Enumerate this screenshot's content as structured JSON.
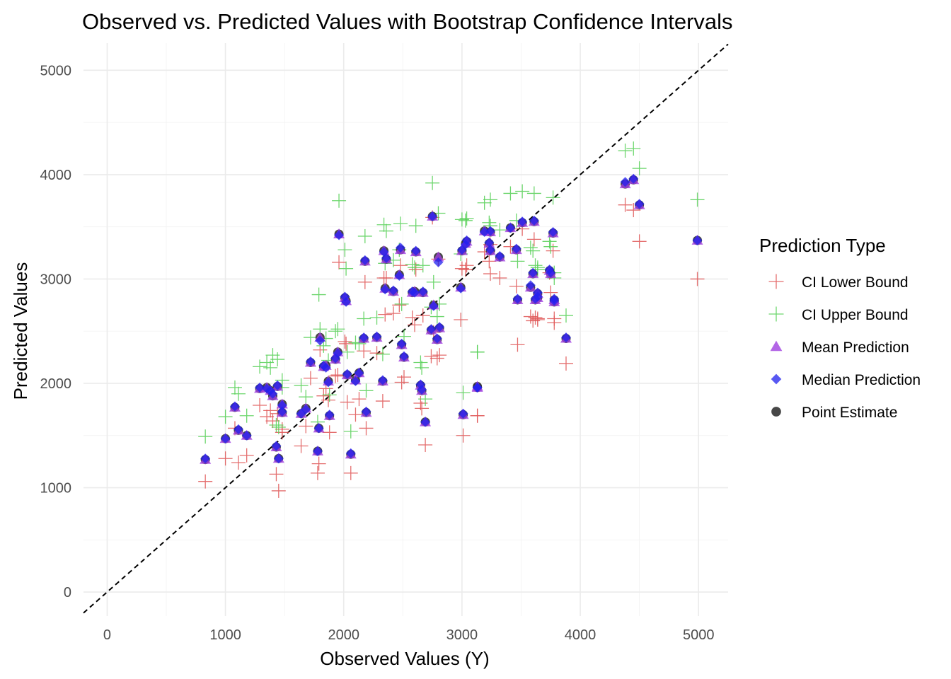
{
  "chart_data": {
    "type": "scatter",
    "title": "Observed vs. Predicted Values with Bootstrap Confidence Intervals",
    "xlabel": "Observed Values (Y)",
    "ylabel": "Predicted Values",
    "xlim": [
      -200,
      5250
    ],
    "ylim": [
      -230,
      5260
    ],
    "x_ticks": [
      0,
      1000,
      2000,
      3000,
      4000,
      5000
    ],
    "y_ticks": [
      0,
      1000,
      2000,
      3000,
      4000,
      5000
    ],
    "grid": true,
    "reference_line": {
      "type": "identity",
      "style": "dashed",
      "color": "#000000"
    },
    "legend": {
      "title": "Prediction Type",
      "position": "right",
      "entries": [
        {
          "label": "CI Lower Bound",
          "shape": "plus",
          "color": "#e05555"
        },
        {
          "label": "CI Upper Bound",
          "shape": "plus",
          "color": "#55d055"
        },
        {
          "label": "Mean Prediction",
          "shape": "triangle",
          "color": "#a040e0"
        },
        {
          "label": "Median Prediction",
          "shape": "diamond",
          "color": "#2020ee"
        },
        {
          "label": "Point Estimate",
          "shape": "circle",
          "color": "#333333"
        }
      ]
    },
    "x": [
      830,
      1000,
      1080,
      1110,
      1180,
      1290,
      1350,
      1380,
      1400,
      1430,
      1440,
      1450,
      1480,
      1480,
      1640,
      1680,
      1720,
      1780,
      1790,
      1800,
      1830,
      1850,
      1870,
      1880,
      1930,
      1950,
      1960,
      2010,
      2020,
      2030,
      2060,
      2100,
      2130,
      2170,
      2180,
      2190,
      2280,
      2330,
      2340,
      2350,
      2360,
      2420,
      2470,
      2480,
      2490,
      2510,
      2580,
      2600,
      2610,
      2650,
      2660,
      2670,
      2690,
      2740,
      2750,
      2760,
      2790,
      2800,
      2810,
      2990,
      3000,
      3010,
      3030,
      3040,
      3130,
      3130,
      3190,
      3230,
      3240,
      3240,
      3320,
      3410,
      3460,
      3470,
      3510,
      3580,
      3600,
      3610,
      3620,
      3640,
      3640,
      3740,
      3750,
      3770,
      3780,
      3780,
      3880,
      4380,
      4450,
      4500,
      4990
    ],
    "series": [
      {
        "name": "Point Estimate",
        "values": [
          1270,
          1470,
          1770,
          1550,
          1500,
          1950,
          1960,
          1930,
          1880,
          1390,
          1970,
          1280,
          1720,
          1800,
          1710,
          1760,
          2200,
          1350,
          1570,
          2440,
          2160,
          2170,
          2020,
          1690,
          2230,
          2300,
          3430,
          2820,
          2790,
          2080,
          1320,
          2030,
          2100,
          2430,
          3170,
          1720,
          2440,
          2020,
          3270,
          2910,
          3190,
          2880,
          3040,
          3280,
          2370,
          2250,
          2870,
          2880,
          3260,
          1980,
          1930,
          2870,
          1630,
          2510,
          3600,
          2750,
          2420,
          3210,
          2530,
          2920,
          3270,
          1700,
          3340,
          3360,
          1960,
          1970,
          3460,
          3340,
          3270,
          3450,
          3210,
          3490,
          3280,
          2800,
          3540,
          2920,
          3050,
          3550,
          2800,
          2860,
          2820,
          3080,
          3050,
          3440,
          2780,
          2800,
          2430,
          3910,
          3950,
          3710,
          3370
        ]
      },
      {
        "name": "Mean Prediction",
        "values": [
          1270,
          1470,
          1770,
          1550,
          1500,
          1950,
          1960,
          1930,
          1880,
          1390,
          1970,
          1280,
          1720,
          1800,
          1710,
          1760,
          2200,
          1350,
          1570,
          2440,
          2160,
          2170,
          2020,
          1690,
          2230,
          2300,
          3430,
          2820,
          2790,
          2080,
          1320,
          2030,
          2100,
          2430,
          3170,
          1720,
          2440,
          2020,
          3270,
          2910,
          3190,
          2880,
          3040,
          3280,
          2370,
          2250,
          2870,
          2880,
          3260,
          1980,
          1930,
          2870,
          1630,
          2510,
          3600,
          2750,
          2420,
          3210,
          2530,
          2920,
          3270,
          1700,
          3340,
          3360,
          1960,
          1970,
          3460,
          3340,
          3270,
          3450,
          3210,
          3490,
          3280,
          2800,
          3540,
          2920,
          3050,
          3550,
          2800,
          2860,
          2820,
          3080,
          3050,
          3440,
          2780,
          2800,
          2430,
          3910,
          3950,
          3710,
          3370
        ]
      },
      {
        "name": "Median Prediction",
        "values": [
          1280,
          1470,
          1780,
          1560,
          1500,
          1960,
          1950,
          1930,
          1900,
          1400,
          1980,
          1280,
          1730,
          1790,
          1710,
          1750,
          2210,
          1350,
          1570,
          2410,
          2170,
          2150,
          2010,
          1700,
          2240,
          2290,
          3420,
          2830,
          2780,
          2090,
          1330,
          2020,
          2100,
          2440,
          3180,
          1730,
          2450,
          2030,
          3260,
          2900,
          3200,
          2890,
          3030,
          3300,
          2380,
          2260,
          2880,
          2870,
          3270,
          1990,
          1940,
          2880,
          1630,
          2520,
          3600,
          2740,
          2430,
          3160,
          2540,
          2910,
          3280,
          1710,
          3330,
          3370,
          1960,
          1960,
          3450,
          3350,
          3280,
          3460,
          3220,
          3490,
          3290,
          2810,
          3550,
          2940,
          3060,
          3560,
          2810,
          2870,
          2830,
          3090,
          3060,
          3450,
          2790,
          2810,
          2440,
          3930,
          3960,
          3720,
          3370
        ]
      },
      {
        "name": "CI Lower Bound",
        "values": [
          1060,
          1280,
          1570,
          1240,
          1310,
          1790,
          1680,
          1740,
          1640,
          1130,
          1710,
          970,
          1530,
          1560,
          1400,
          1590,
          2050,
          1140,
          1230,
          2320,
          1880,
          1950,
          1840,
          1530,
          2070,
          2080,
          3160,
          2400,
          2380,
          1820,
          1140,
          1700,
          1850,
          2310,
          2970,
          1570,
          2290,
          1830,
          3010,
          2660,
          3010,
          2670,
          2750,
          3130,
          2010,
          2060,
          2630,
          2560,
          3090,
          1810,
          1760,
          2650,
          1410,
          2260,
          3590,
          2490,
          2240,
          3190,
          2270,
          2610,
          3100,
          1500,
          3090,
          3130,
          1690,
          1690,
          3260,
          3170,
          3050,
          3330,
          3010,
          3310,
          2930,
          2370,
          3480,
          2640,
          2600,
          3380,
          2630,
          2620,
          2610,
          3060,
          2870,
          3270,
          2620,
          2580,
          2190,
          3710,
          3660,
          3360,
          3000
        ]
      },
      {
        "name": "CI Upper Bound",
        "values": [
          1490,
          1680,
          1960,
          1900,
          1690,
          2160,
          2200,
          2150,
          2270,
          1600,
          2230,
          1580,
          1960,
          2030,
          1980,
          1870,
          2440,
          1630,
          2850,
          2520,
          2360,
          2430,
          2220,
          1890,
          2500,
          2520,
          3750,
          3280,
          3100,
          2300,
          1540,
          2390,
          2380,
          2620,
          3410,
          1930,
          2630,
          2280,
          3520,
          3150,
          3460,
          3180,
          3280,
          3530,
          2760,
          2450,
          3140,
          3110,
          3510,
          2200,
          2150,
          3130,
          1850,
          2730,
          3920,
          2970,
          2640,
          3630,
          2760,
          3240,
          3570,
          1910,
          3560,
          3580,
          2300,
          2300,
          3730,
          3540,
          3510,
          3760,
          3470,
          3820,
          3560,
          3170,
          3840,
          3300,
          3270,
          3820,
          3130,
          3110,
          3090,
          3360,
          3310,
          3780,
          3010,
          3060,
          2650,
          4230,
          4250,
          4060,
          3760
        ]
      }
    ]
  }
}
